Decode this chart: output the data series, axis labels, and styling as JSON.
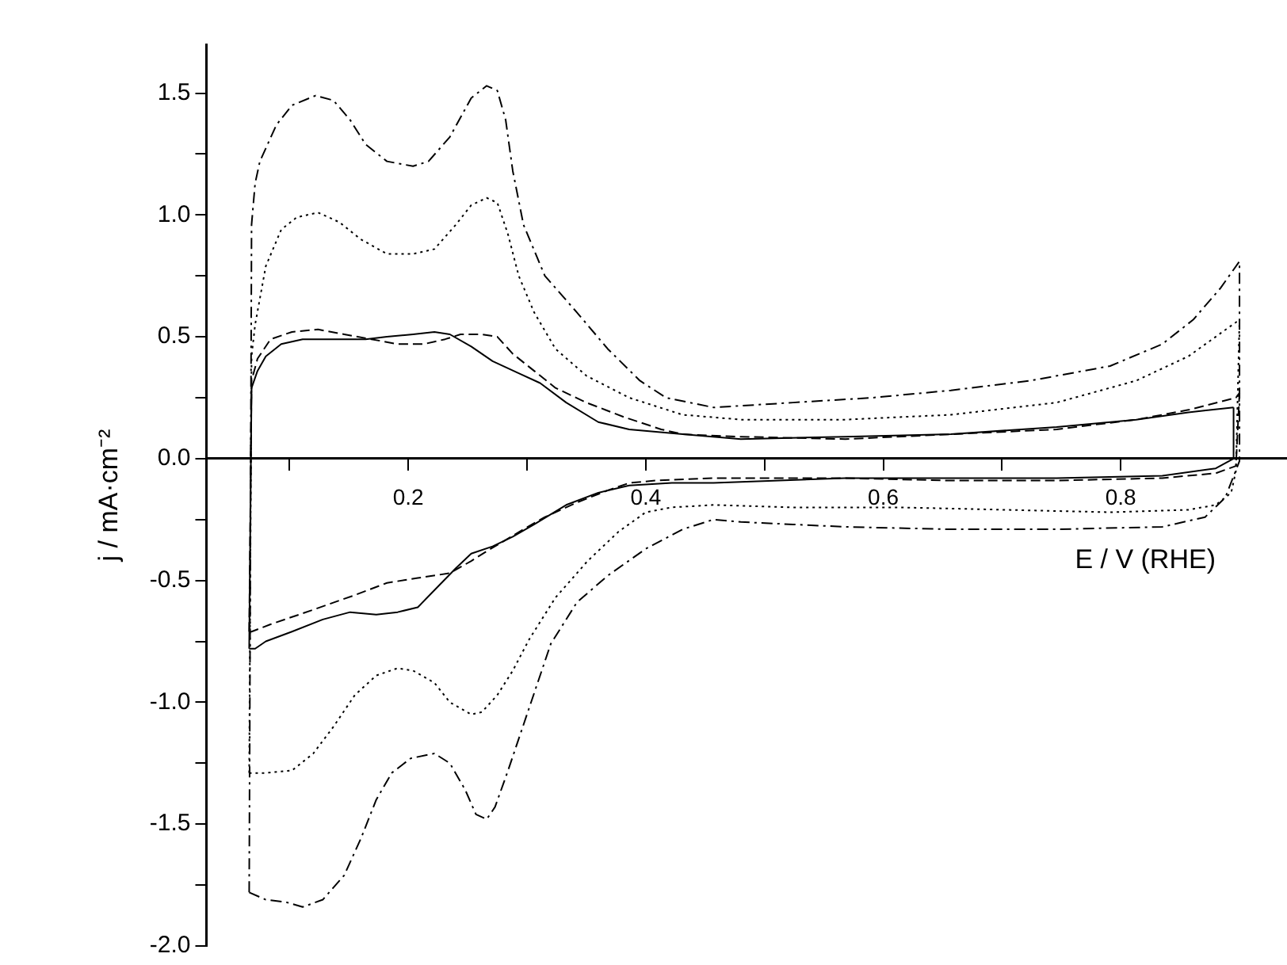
{
  "chart_data": {
    "type": "line",
    "xlabel": "E / V (RHE)",
    "ylabel": "j / mA·cm⁻²",
    "xlim": [
      0.03,
      0.94
    ],
    "ylim": [
      -2.0,
      1.7
    ],
    "xticks": [
      {
        "value": 0.1,
        "label": null
      },
      0.2,
      {
        "value": 0.3,
        "label": null
      },
      0.4,
      {
        "value": 0.5,
        "label": null
      },
      0.6,
      {
        "value": 0.7,
        "label": null
      },
      0.8
    ],
    "yticks": [
      {
        "value": -2,
        "label": "-2.0"
      },
      {
        "value": -1.75,
        "label": null
      },
      -1.5,
      {
        "value": -1.25,
        "label": null
      },
      {
        "value": -1,
        "label": "-1.0"
      },
      {
        "value": -0.75,
        "label": null
      },
      -0.5,
      {
        "value": -0.25,
        "label": null
      },
      {
        "value": 0,
        "label": "0.0"
      },
      {
        "value": 0.25,
        "label": null
      },
      0.5,
      {
        "value": 0.75,
        "label": null
      },
      {
        "value": 1,
        "label": "1.0"
      },
      {
        "value": 1.25,
        "label": null
      },
      1.5
    ],
    "grid": false,
    "legend": false,
    "marker": "none",
    "series": [
      {
        "color": "#000000",
        "line_style": "solid",
        "x": [
          0.066,
          0.068,
          0.073,
          0.08,
          0.093,
          0.111,
          0.137,
          0.164,
          0.182,
          0.204,
          0.222,
          0.235,
          0.253,
          0.271,
          0.293,
          0.311,
          0.333,
          0.36,
          0.386,
          0.431,
          0.48,
          0.568,
          0.657,
          0.746,
          0.813,
          0.857,
          0.895
        ],
        "values": [
          -0.78,
          0.29,
          0.36,
          0.42,
          0.47,
          0.49,
          0.49,
          0.49,
          0.5,
          0.51,
          0.52,
          0.51,
          0.46,
          0.4,
          0.35,
          0.31,
          0.23,
          0.15,
          0.12,
          0.1,
          0.08,
          0.09,
          0.1,
          0.13,
          0.16,
          0.19,
          0.21
        ]
      },
      {
        "color": "#000000",
        "line_style": "solid",
        "x": [
          0.066,
          0.071,
          0.08,
          0.102,
          0.128,
          0.151,
          0.173,
          0.191,
          0.208,
          0.226,
          0.24,
          0.253,
          0.271,
          0.288,
          0.306,
          0.333,
          0.36,
          0.386,
          0.422,
          0.457,
          0.568,
          0.657,
          0.746,
          0.835,
          0.88,
          0.895,
          0.895
        ],
        "values": [
          -0.78,
          -0.78,
          -0.75,
          -0.71,
          -0.66,
          -0.63,
          -0.64,
          -0.63,
          -0.61,
          -0.52,
          -0.45,
          -0.39,
          -0.36,
          -0.32,
          -0.27,
          -0.19,
          -0.14,
          -0.11,
          -0.1,
          -0.1,
          -0.08,
          -0.08,
          -0.08,
          -0.07,
          -0.04,
          0,
          0.21
        ]
      },
      {
        "color": "#000000",
        "line_style": "dashed",
        "x": [
          0.066,
          0.068,
          0.073,
          0.084,
          0.102,
          0.124,
          0.146,
          0.169,
          0.191,
          0.213,
          0.231,
          0.244,
          0.262,
          0.275,
          0.288,
          0.306,
          0.324,
          0.35,
          0.382,
          0.413,
          0.431,
          0.48,
          0.568,
          0.657,
          0.746,
          0.813,
          0.857,
          0.897,
          0.9
        ],
        "values": [
          -0.71,
          0.32,
          0.41,
          0.49,
          0.52,
          0.53,
          0.51,
          0.49,
          0.47,
          0.47,
          0.49,
          0.51,
          0.51,
          0.5,
          0.43,
          0.36,
          0.29,
          0.23,
          0.17,
          0.12,
          0.1,
          0.09,
          0.08,
          0.1,
          0.12,
          0.16,
          0.2,
          0.25,
          0.27
        ]
      },
      {
        "color": "#000000",
        "line_style": "dashed",
        "x": [
          0.066,
          0.068,
          0.084,
          0.12,
          0.155,
          0.182,
          0.208,
          0.235,
          0.253,
          0.266,
          0.28,
          0.297,
          0.315,
          0.342,
          0.368,
          0.386,
          0.408,
          0.457,
          0.48,
          0.568,
          0.657,
          0.746,
          0.835,
          0.88,
          0.897,
          0.9
        ],
        "values": [
          -0.71,
          -0.71,
          -0.68,
          -0.62,
          -0.56,
          -0.51,
          -0.49,
          -0.47,
          -0.42,
          -0.38,
          -0.34,
          -0.29,
          -0.24,
          -0.18,
          -0.13,
          -0.1,
          -0.09,
          -0.08,
          -0.08,
          -0.08,
          -0.09,
          -0.09,
          -0.08,
          -0.06,
          -0.03,
          0.27
        ]
      },
      {
        "color": "#000000",
        "line_style": "dotted",
        "x": [
          0.066,
          0.068,
          0.071,
          0.08,
          0.093,
          0.106,
          0.124,
          0.142,
          0.16,
          0.182,
          0.204,
          0.222,
          0.24,
          0.253,
          0.266,
          0.275,
          0.284,
          0.293,
          0.306,
          0.324,
          0.35,
          0.386,
          0.431,
          0.48,
          0.568,
          0.657,
          0.746,
          0.813,
          0.857,
          0.9
        ],
        "values": [
          -1.29,
          0.42,
          0.55,
          0.79,
          0.94,
          0.99,
          1.01,
          0.97,
          0.9,
          0.84,
          0.84,
          0.86,
          0.96,
          1.04,
          1.07,
          1.05,
          0.92,
          0.75,
          0.6,
          0.45,
          0.34,
          0.25,
          0.18,
          0.16,
          0.16,
          0.18,
          0.23,
          0.32,
          0.42,
          0.57
        ]
      },
      {
        "color": "#000000",
        "line_style": "dotted",
        "x": [
          0.066,
          0.08,
          0.102,
          0.12,
          0.137,
          0.155,
          0.173,
          0.191,
          0.204,
          0.222,
          0.235,
          0.253,
          0.262,
          0.275,
          0.288,
          0.302,
          0.324,
          0.351,
          0.377,
          0.4,
          0.422,
          0.457,
          0.524,
          0.613,
          0.702,
          0.791,
          0.857,
          0.88,
          0.893,
          0.897,
          0.9
        ],
        "values": [
          -1.29,
          -1.29,
          -1.28,
          -1.21,
          -1.1,
          -0.97,
          -0.89,
          -0.86,
          -0.87,
          -0.92,
          -1,
          -1.05,
          -1.04,
          -0.97,
          -0.87,
          -0.74,
          -0.57,
          -0.42,
          -0.3,
          -0.22,
          -0.2,
          -0.19,
          -0.2,
          -0.2,
          -0.21,
          -0.22,
          -0.21,
          -0.19,
          -0.14,
          -0.05,
          0.57
        ]
      },
      {
        "color": "#000000",
        "line_style": "dashdot",
        "x": [
          0.066,
          0.068,
          0.071,
          0.075,
          0.089,
          0.102,
          0.122,
          0.137,
          0.151,
          0.164,
          0.182,
          0.204,
          0.217,
          0.235,
          0.253,
          0.266,
          0.275,
          0.282,
          0.288,
          0.297,
          0.315,
          0.342,
          0.368,
          0.395,
          0.417,
          0.457,
          0.524,
          0.591,
          0.657,
          0.724,
          0.791,
          0.835,
          0.861,
          0.884,
          0.9
        ],
        "values": [
          -1.78,
          0.96,
          1.13,
          1.22,
          1.37,
          1.45,
          1.49,
          1.47,
          1.39,
          1.29,
          1.22,
          1.2,
          1.22,
          1.32,
          1.48,
          1.53,
          1.51,
          1.39,
          1.18,
          0.96,
          0.75,
          0.6,
          0.45,
          0.32,
          0.25,
          0.21,
          0.23,
          0.25,
          0.28,
          0.32,
          0.38,
          0.47,
          0.57,
          0.7,
          0.81
        ]
      },
      {
        "color": "#000000",
        "line_style": "dashdot",
        "x": [
          0.066,
          0.08,
          0.097,
          0.111,
          0.128,
          0.146,
          0.16,
          0.173,
          0.186,
          0.202,
          0.222,
          0.235,
          0.248,
          0.257,
          0.266,
          0.273,
          0.284,
          0.302,
          0.32,
          0.342,
          0.368,
          0.4,
          0.431,
          0.457,
          0.48,
          0.524,
          0.568,
          0.657,
          0.746,
          0.835,
          0.871,
          0.888,
          0.9,
          0.9
        ],
        "values": [
          -1.78,
          -1.81,
          -1.82,
          -1.84,
          -1.81,
          -1.71,
          -1.56,
          -1.4,
          -1.29,
          -1.23,
          -1.21,
          -1.25,
          -1.36,
          -1.46,
          -1.48,
          -1.43,
          -1.28,
          -1.02,
          -0.76,
          -0.59,
          -0.48,
          -0.37,
          -0.29,
          -0.25,
          -0.26,
          -0.27,
          -0.28,
          -0.29,
          -0.29,
          -0.28,
          -0.24,
          -0.16,
          -0.01,
          0.81
        ]
      }
    ]
  }
}
